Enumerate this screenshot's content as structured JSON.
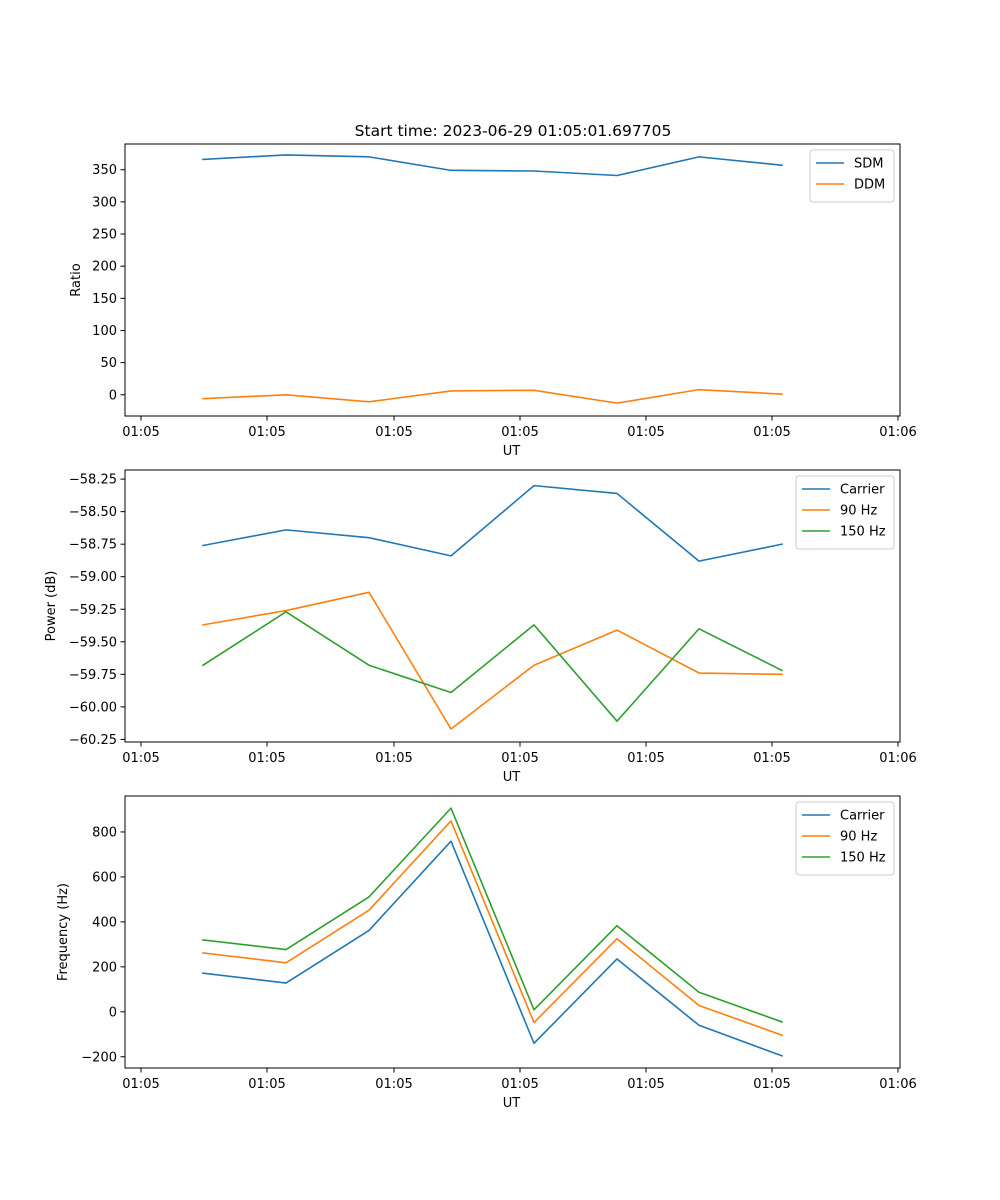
{
  "figure": {
    "title": "Start time: 2023-06-29 01:05:01.697705"
  },
  "chart_data": [
    {
      "type": "line",
      "ylabel": "Ratio",
      "xlabel": "UT",
      "x_ticks": [
        "01:05",
        "01:05",
        "01:05",
        "01:05",
        "01:05",
        "01:05",
        "01:06"
      ],
      "y_ticks": [
        0,
        50,
        100,
        150,
        200,
        250,
        300,
        350
      ],
      "ylim": [
        -33,
        390
      ],
      "legend_position": "top-right",
      "series": [
        {
          "name": "SDM",
          "color": "#1f77b4",
          "values": [
            366,
            373,
            370,
            349,
            348,
            341,
            370,
            357
          ]
        },
        {
          "name": "DDM",
          "color": "#ff7f0e",
          "values": [
            -6,
            0,
            -11,
            6,
            7,
            -13,
            8,
            1
          ]
        }
      ]
    },
    {
      "type": "line",
      "ylabel": "Power (dB)",
      "xlabel": "UT",
      "x_ticks": [
        "01:05",
        "01:05",
        "01:05",
        "01:05",
        "01:05",
        "01:05",
        "01:06"
      ],
      "y_ticks": [
        -58.25,
        -58.5,
        -58.75,
        -59.0,
        -59.25,
        -59.5,
        -59.75,
        -60.0,
        -60.25
      ],
      "y_tick_labels": [
        "−58.25",
        "−58.50",
        "−58.75",
        "−59.00",
        "−59.25",
        "−59.50",
        "−59.75",
        "−60.00",
        "−60.25"
      ],
      "ylim": [
        -60.27,
        -58.18
      ],
      "legend_position": "top-right",
      "series": [
        {
          "name": "Carrier",
          "color": "#1f77b4",
          "values": [
            -58.76,
            -58.64,
            -58.7,
            -58.84,
            -58.3,
            -58.36,
            -58.88,
            -58.75
          ]
        },
        {
          "name": "90 Hz",
          "color": "#ff7f0e",
          "values": [
            -59.37,
            -59.26,
            -59.12,
            -60.17,
            -59.68,
            -59.41,
            -59.74,
            -59.75
          ]
        },
        {
          "name": "150 Hz",
          "color": "#2ca02c",
          "values": [
            -59.68,
            -59.27,
            -59.68,
            -59.89,
            -59.37,
            -60.11,
            -59.4,
            -59.72
          ]
        }
      ]
    },
    {
      "type": "line",
      "ylabel": "Frequency (Hz)",
      "xlabel": "UT",
      "x_ticks": [
        "01:05",
        "01:05",
        "01:05",
        "01:05",
        "01:05",
        "01:05",
        "01:06"
      ],
      "y_ticks": [
        -200,
        0,
        200,
        400,
        600,
        800
      ],
      "y_tick_labels": [
        "−200",
        "0",
        "200",
        "400",
        "600",
        "800"
      ],
      "ylim": [
        -250,
        960
      ],
      "legend_position": "top-right",
      "series": [
        {
          "name": "Carrier",
          "color": "#1f77b4",
          "values": [
            172,
            128,
            362,
            759,
            -140,
            235,
            -60,
            -196
          ]
        },
        {
          "name": "90 Hz",
          "color": "#ff7f0e",
          "values": [
            262,
            218,
            452,
            849,
            -48,
            325,
            28,
            -104
          ]
        },
        {
          "name": "150 Hz",
          "color": "#2ca02c",
          "values": [
            320,
            277,
            511,
            906,
            9,
            383,
            87,
            -45
          ]
        }
      ]
    }
  ]
}
